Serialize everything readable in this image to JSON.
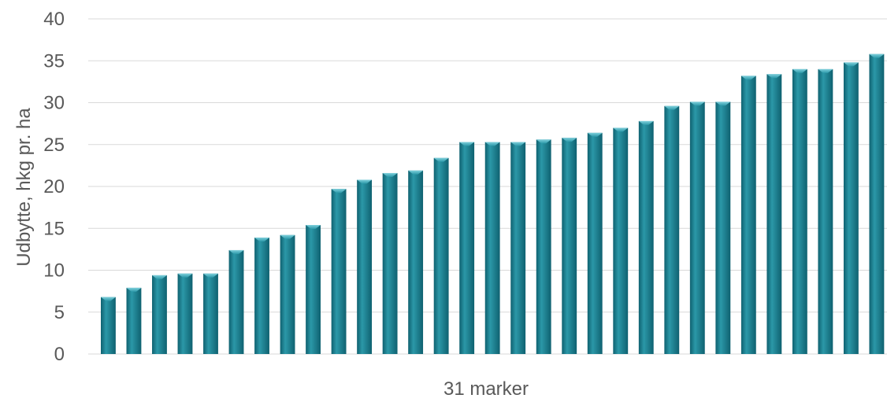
{
  "chart_data": {
    "type": "bar",
    "title": "",
    "xlabel": "31 marker",
    "ylabel": "Udbytte, hkg pr. ha",
    "ylim": [
      0,
      40
    ],
    "yticks": [
      "0",
      "5",
      "10",
      "15",
      "20",
      "25",
      "30",
      "35",
      "40"
    ],
    "grid": true,
    "legend": "none",
    "bar_color": "#0f6170",
    "bar_highlight": "#2b98a8",
    "values": [
      6.8,
      7.9,
      9.4,
      9.6,
      9.6,
      12.4,
      13.9,
      14.2,
      15.4,
      19.7,
      20.8,
      21.6,
      21.9,
      23.4,
      25.3,
      25.3,
      25.3,
      25.6,
      25.8,
      26.4,
      27.0,
      27.8,
      29.6,
      30.1,
      30.1,
      33.2,
      33.4,
      34.0,
      34.0,
      34.8,
      35.8
    ]
  }
}
